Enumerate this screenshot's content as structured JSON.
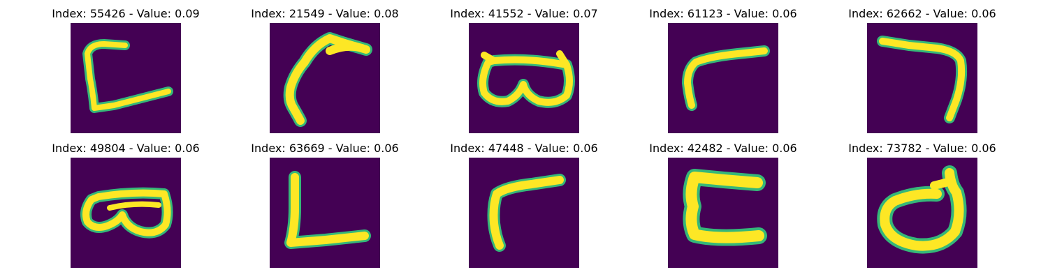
{
  "colors": {
    "background": "#440154",
    "stroke": "#fde725",
    "edge": "#35b779"
  },
  "panels": [
    {
      "title": "Index: 55426 - Value: 0.09",
      "shape": "open-rectangle-left"
    },
    {
      "title": "Index: 21549 - Value: 0.08",
      "shape": "curved-hook-stroke"
    },
    {
      "title": "Index: 41552 - Value: 0.07",
      "shape": "goggles-loop"
    },
    {
      "title": "Index: 61123 - Value: 0.06",
      "shape": "bent-arm-stroke"
    },
    {
      "title": "Index: 62662 - Value: 0.06",
      "shape": "seven-like-stroke"
    },
    {
      "title": "Index: 49804 - Value: 0.06",
      "shape": "goggles-loop-small"
    },
    {
      "title": "Index: 63669 - Value: 0.06",
      "shape": "l-shape"
    },
    {
      "title": "Index: 47448 - Value: 0.06",
      "shape": "gamma-shape"
    },
    {
      "title": "Index: 42482 - Value: 0.06",
      "shape": "c-bracket-thick"
    },
    {
      "title": "Index: 73782 - Value: 0.06",
      "shape": "d-loop-thick"
    }
  ]
}
